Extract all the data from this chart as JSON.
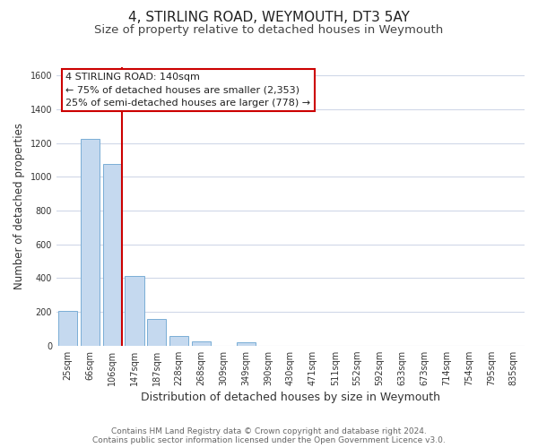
{
  "title": "4, STIRLING ROAD, WEYMOUTH, DT3 5AY",
  "subtitle": "Size of property relative to detached houses in Weymouth",
  "xlabel": "Distribution of detached houses by size in Weymouth",
  "ylabel": "Number of detached properties",
  "bar_labels": [
    "25sqm",
    "66sqm",
    "106sqm",
    "147sqm",
    "187sqm",
    "228sqm",
    "268sqm",
    "309sqm",
    "349sqm",
    "390sqm",
    "430sqm",
    "471sqm",
    "511sqm",
    "552sqm",
    "592sqm",
    "633sqm",
    "673sqm",
    "714sqm",
    "754sqm",
    "795sqm",
    "835sqm"
  ],
  "bar_values": [
    205,
    1225,
    1075,
    410,
    160,
    55,
    25,
    0,
    20,
    0,
    0,
    0,
    0,
    0,
    0,
    0,
    0,
    0,
    0,
    0,
    0
  ],
  "bar_color": "#c5d9ef",
  "bar_edge_color": "#7aaed6",
  "vline_color": "#cc0000",
  "ylim": [
    0,
    1650
  ],
  "yticks": [
    0,
    200,
    400,
    600,
    800,
    1000,
    1200,
    1400,
    1600
  ],
  "annotation_line1": "4 STIRLING ROAD: 140sqm",
  "annotation_line2": "← 75% of detached houses are smaller (2,353)",
  "annotation_line3": "25% of semi-detached houses are larger (778) →",
  "footer_line1": "Contains HM Land Registry data © Crown copyright and database right 2024.",
  "footer_line2": "Contains public sector information licensed under the Open Government Licence v3.0.",
  "bg_color": "#ffffff",
  "grid_color": "#d0d8e8",
  "title_fontsize": 11,
  "subtitle_fontsize": 9.5,
  "tick_fontsize": 7,
  "ylabel_fontsize": 8.5,
  "xlabel_fontsize": 9,
  "annotation_fontsize": 8,
  "footer_fontsize": 6.5
}
